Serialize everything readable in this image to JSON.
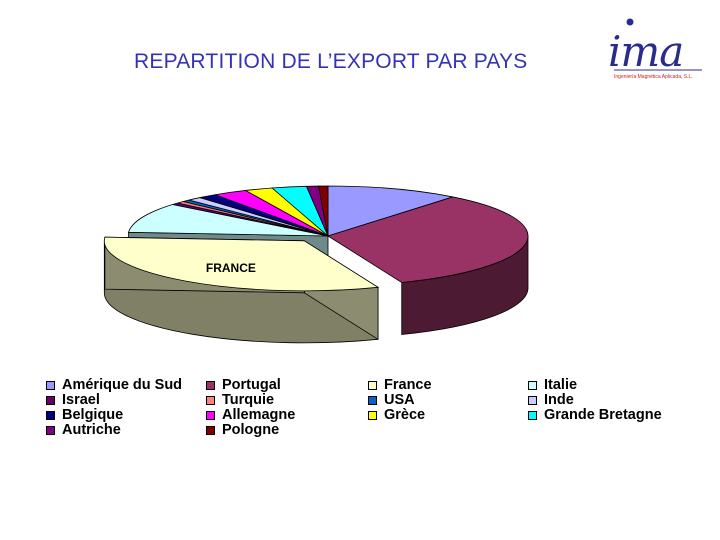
{
  "slide": {
    "title": "REPARTITION DE L’EXPORT PAR PAYS"
  },
  "logo": {
    "mark": "ima",
    "subtitle": "Ingeniería Magnética Aplicada, S.L."
  },
  "colors": {
    "edge": "#000000",
    "shade": "#555555"
  },
  "chart_data": {
    "type": "pie",
    "title": "",
    "style": "3d-exploded",
    "legend": "bottom",
    "annotations": [
      {
        "text": "FRANCE",
        "target": "France"
      }
    ],
    "slices": [
      {
        "name": "Amérique du Sud",
        "value": 10,
        "color": "#9999ff"
      },
      {
        "name": "Portugal",
        "value": 31,
        "color": "#993366"
      },
      {
        "name": "France",
        "value": 30,
        "color": "#ffffcc",
        "exploded": true
      },
      {
        "name": "Italie",
        "value": 9,
        "color": "#ccffff"
      },
      {
        "name": "Israel",
        "value": 0.6,
        "color": "#660066"
      },
      {
        "name": "Turquie",
        "value": 0.6,
        "color": "#ff8080"
      },
      {
        "name": "USA",
        "value": 0.6,
        "color": "#0066cc"
      },
      {
        "name": "Inde",
        "value": 1.1,
        "color": "#ccccff"
      },
      {
        "name": "Belgique",
        "value": 1.4,
        "color": "#000080"
      },
      {
        "name": "Allemagne",
        "value": 2.6,
        "color": "#ff00ff"
      },
      {
        "name": "Grèce",
        "value": 2.1,
        "color": "#ffff00"
      },
      {
        "name": "Grande Bretagne",
        "value": 2.6,
        "color": "#00ffff"
      },
      {
        "name": "Autriche",
        "value": 0.9,
        "color": "#800080"
      },
      {
        "name": "Pologne",
        "value": 0.7,
        "color": "#800000"
      }
    ]
  }
}
